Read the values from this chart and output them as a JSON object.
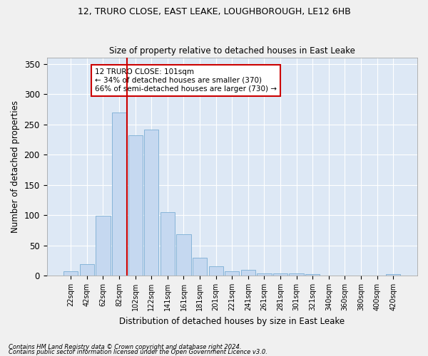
{
  "title1": "12, TRURO CLOSE, EAST LEAKE, LOUGHBOROUGH, LE12 6HB",
  "title2": "Size of property relative to detached houses in East Leake",
  "xlabel": "Distribution of detached houses by size in East Leake",
  "ylabel": "Number of detached properties",
  "bar_labels": [
    "22sqm",
    "42sqm",
    "62sqm",
    "82sqm",
    "102sqm",
    "122sqm",
    "141sqm",
    "161sqm",
    "181sqm",
    "201sqm",
    "221sqm",
    "241sqm",
    "261sqm",
    "281sqm",
    "301sqm",
    "321sqm",
    "340sqm",
    "360sqm",
    "380sqm",
    "400sqm",
    "420sqm"
  ],
  "bar_values": [
    7,
    19,
    99,
    270,
    232,
    241,
    105,
    68,
    30,
    15,
    7,
    10,
    4,
    4,
    4,
    3,
    0,
    0,
    0,
    0,
    3
  ],
  "bar_color": "#c5d8f0",
  "bar_edge_color": "#7aadd4",
  "vline_color": "#cc0000",
  "annotation_text": "12 TRURO CLOSE: 101sqm\n← 34% of detached houses are smaller (370)\n66% of semi-detached houses are larger (730) →",
  "annotation_box_color": "#ffffff",
  "annotation_box_edge": "#cc0000",
  "ylim": [
    0,
    360
  ],
  "yticks": [
    0,
    50,
    100,
    150,
    200,
    250,
    300,
    350
  ],
  "bg_color": "#dde8f5",
  "grid_color": "#ffffff",
  "footer1": "Contains HM Land Registry data © Crown copyright and database right 2024.",
  "footer2": "Contains public sector information licensed under the Open Government Licence v3.0."
}
